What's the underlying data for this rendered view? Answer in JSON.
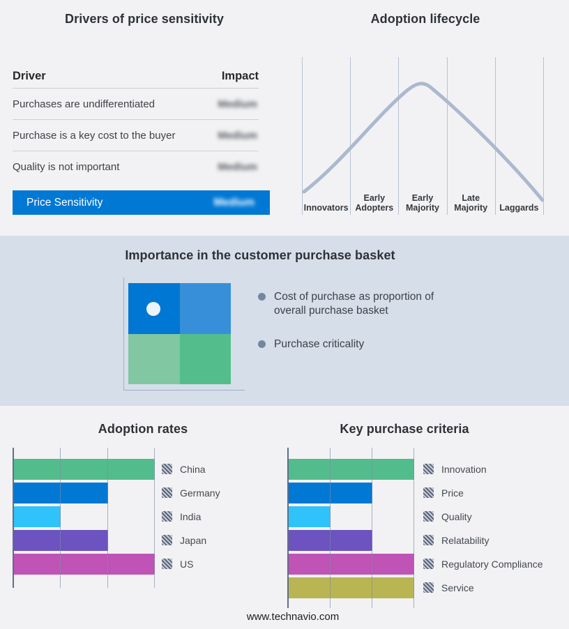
{
  "page": {
    "footer": "www.technavio.com",
    "colors": {
      "background": "#F2F2F4",
      "mid_band_background": "#D5DEE9",
      "accent_blue": "#0078D4",
      "curve": "#ABB9CF",
      "gridline": "#B6C2D3",
      "axis": "#5F6E88"
    }
  },
  "drivers_panel": {
    "title": "Drivers of price sensitivity",
    "table": {
      "col_driver": "Driver",
      "col_impact": "Impact",
      "rows": [
        {
          "driver": "Purchases are undifferentiated",
          "impact": "Medium",
          "impact_blurred": true
        },
        {
          "driver": "Purchase is a key cost to the buyer",
          "impact": "Medium",
          "impact_blurred": true
        },
        {
          "driver": "Quality is not important",
          "impact": "Medium",
          "impact_blurred": true
        }
      ],
      "highlight": {
        "label": "Price Sensitivity",
        "impact": "Medium",
        "impact_blurred": true,
        "background": "#0078D4"
      }
    }
  },
  "basket_panel": {
    "title": "Importance in the customer purchase basket",
    "bullets": [
      "Cost of purchase as proportion of overall purchase basket",
      "Purchase criticality"
    ],
    "quadrant_colors": [
      "#0077D2",
      "#378FD9",
      "#81C7A1",
      "#54BD8C"
    ]
  },
  "chart_data": [
    {
      "type": "bar",
      "orientation": "horizontal",
      "title": "Adoption rates",
      "categories": [
        "China",
        "Germany",
        "India",
        "Japan",
        "US"
      ],
      "values": [
        3,
        2,
        1,
        2,
        3
      ],
      "value_unit": "relative gridline units (no numeric axis labels shown)",
      "xlim": [
        0,
        3
      ],
      "gridlines": [
        1,
        2,
        3
      ],
      "colors": [
        "#53BC8D",
        "#0078D4",
        "#30C3FA",
        "#6C53BF",
        "#BF53B6"
      ],
      "legend_position": "right",
      "legend_marker_style": "gray diagonal hatch square"
    },
    {
      "type": "bar",
      "orientation": "horizontal",
      "title": "Key purchase criteria",
      "categories": [
        "Innovation",
        "Price",
        "Quality",
        "Relatability",
        "Regulatory Compliance",
        "Service"
      ],
      "values": [
        3,
        2,
        1,
        2,
        3,
        3
      ],
      "value_unit": "relative gridline units (no numeric axis labels shown)",
      "xlim": [
        0,
        3
      ],
      "gridlines": [
        1,
        2,
        3
      ],
      "colors": [
        "#53BC8D",
        "#0078D4",
        "#30C3FA",
        "#6C53BF",
        "#BF53B6",
        "#B9B552"
      ],
      "legend_position": "right",
      "legend_marker_style": "gray diagonal hatch square"
    },
    {
      "type": "line",
      "title": "Adoption lifecycle",
      "description": "Bell-shaped adoption curve over five stages, peak over the Early Majority stage",
      "categories": [
        "Innovators",
        "Early Adopters",
        "Early Majority",
        "Late Majority",
        "Laggards"
      ],
      "curve_color": "#ABB9CF",
      "grid": "vertical stage separators only"
    }
  ]
}
